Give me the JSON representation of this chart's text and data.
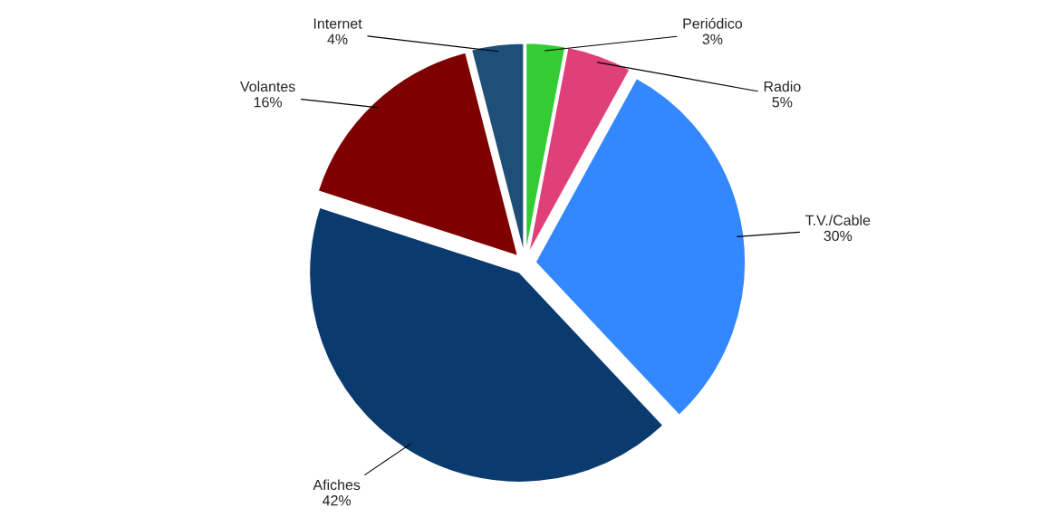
{
  "chart_data": {
    "type": "pie",
    "categories": [
      "Periódico",
      "Radio",
      "T.V./Cable",
      "Afiches",
      "Volantes",
      "Internet"
    ],
    "values": [
      3,
      5,
      30,
      42,
      16,
      4
    ],
    "value_labels": [
      "3%",
      "5%",
      "30%",
      "42%",
      "16%",
      "4%"
    ],
    "colors": [
      "#33cc33",
      "#e0407a",
      "#3388ff",
      "#0b3a6e",
      "#7f0000",
      "#1f4e79"
    ],
    "legend": false
  }
}
